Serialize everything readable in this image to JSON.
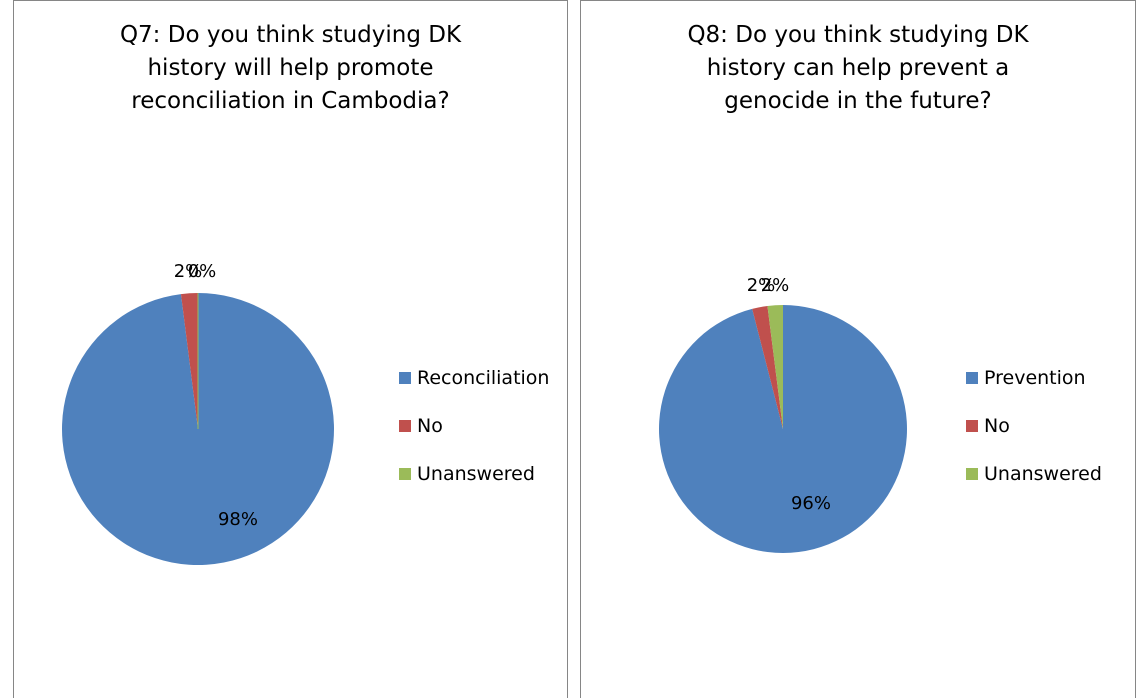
{
  "chart_data": [
    {
      "type": "pie",
      "title_lines": [
        "Q7: Do you think studying DK",
        "history will help promote",
        "reconciliation in Cambodia?"
      ],
      "slices": [
        {
          "name": "Reconciliation",
          "value": 98,
          "label": "98%",
          "color": "#4F81BD"
        },
        {
          "name": "No",
          "value": 2,
          "label": "2%",
          "color": "#C0504D"
        },
        {
          "name": "Unanswered",
          "value": 0,
          "label": "0%",
          "color": "#9BBB59"
        }
      ],
      "legend_position": "right"
    },
    {
      "type": "pie",
      "title_lines": [
        "Q8: Do you think studying DK",
        "history can help prevent a",
        "genocide in the future?"
      ],
      "slices": [
        {
          "name": "Prevention",
          "value": 96,
          "label": "96%",
          "color": "#4F81BD"
        },
        {
          "name": "No",
          "value": 2,
          "label": "2%",
          "color": "#C0504D"
        },
        {
          "name": "Unanswered",
          "value": 2,
          "label": "2%",
          "color": "#9BBB59"
        }
      ],
      "legend_position": "right"
    }
  ]
}
